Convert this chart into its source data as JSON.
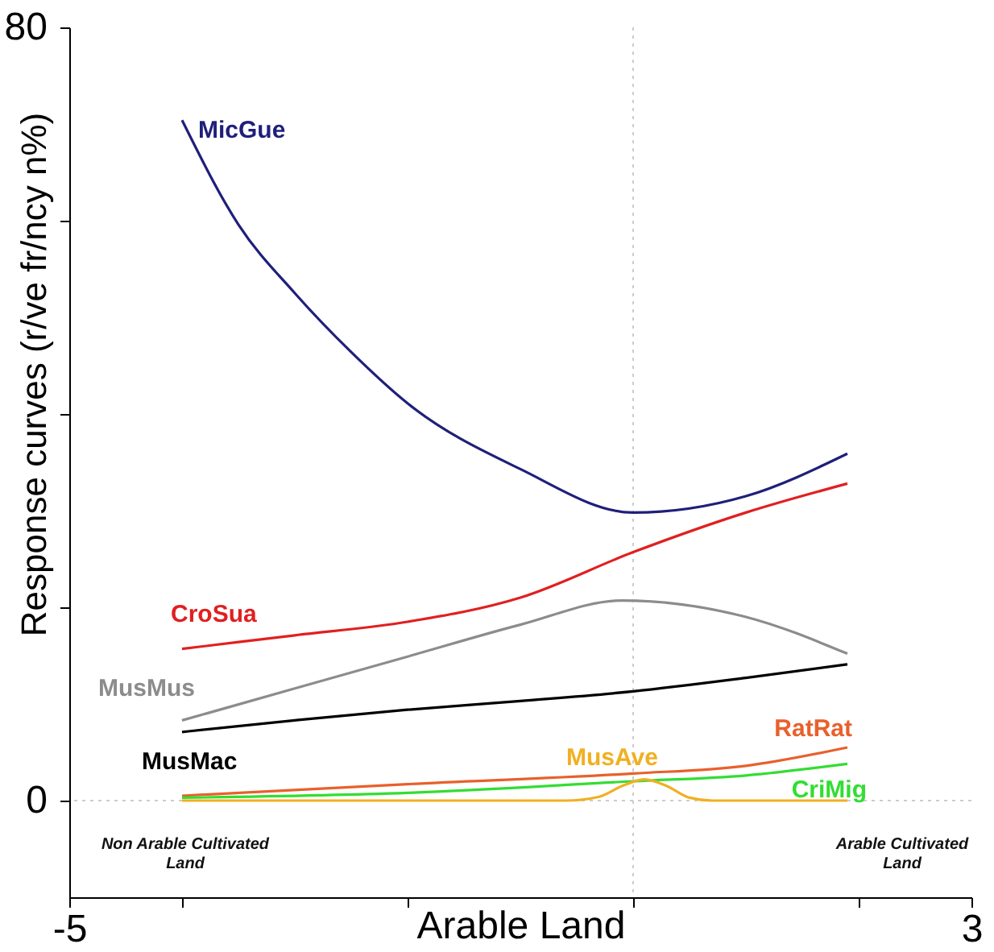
{
  "chart_data": {
    "type": "line",
    "xlabel": "Arable Land",
    "ylabel": "Response curves (r/ve fr/ncy n%)",
    "xlim": [
      -5,
      3
    ],
    "ylim": [
      -10,
      80
    ],
    "xticks": [
      -5,
      {
        "value": -4,
        "label": null
      },
      {
        "value": -2,
        "label": null
      },
      {
        "value": 0,
        "label": null
      },
      {
        "value": 2,
        "label": null
      },
      3
    ],
    "yticks": [
      0,
      {
        "value": 20,
        "label": null
      },
      {
        "value": 40,
        "label": null
      },
      {
        "value": 60,
        "label": null
      },
      80
    ],
    "grid": false,
    "marker": "none",
    "line_style": "solid",
    "ref_lines": [
      {
        "axis": "x",
        "value": 0,
        "color": "#cccccc",
        "line_style": "dotted"
      },
      {
        "axis": "y",
        "value": 0,
        "color": "#cccccc",
        "line_style": "dotted"
      }
    ],
    "annotations": [
      "Non Arable Cultivated\nLand",
      "Arable Cultivated\nLand"
    ],
    "series": [
      {
        "name": "MicGue",
        "color": "#1f1f7a",
        "x": [
          -4,
          -3.5,
          -3,
          -2.5,
          -2,
          -1,
          0,
          1,
          1.9
        ],
        "values": [
          70.4,
          59.6,
          52.5,
          46.4,
          41.1,
          34.3,
          29.8,
          31.5,
          35.9
        ]
      },
      {
        "name": "CroSua",
        "color": "#e02020",
        "x": [
          -4,
          -3,
          -2,
          -1,
          0,
          1,
          1.9
        ],
        "values": [
          15.7,
          17.1,
          18.5,
          21.0,
          25.7,
          29.8,
          32.8
        ]
      },
      {
        "name": "MusMus",
        "color": "#8c8c8c",
        "x": [
          -4,
          -3,
          -2,
          -1,
          -0.1,
          1,
          1.9
        ],
        "values": [
          8.3,
          11.6,
          14.9,
          18.2,
          20.7,
          19.0,
          15.2
        ]
      },
      {
        "name": "MusMac",
        "color": "#000000",
        "x": [
          -4,
          -3,
          -2,
          -1,
          0,
          1,
          1.9
        ],
        "values": [
          7.1,
          8.3,
          9.4,
          10.3,
          11.3,
          12.7,
          14.1
        ]
      },
      {
        "name": "RatRat",
        "color": "#e8602c",
        "x": [
          -4,
          -2,
          0,
          1,
          1.9
        ],
        "values": [
          0.5,
          1.7,
          2.8,
          3.6,
          5.5
        ]
      },
      {
        "name": "CriMig",
        "color": "#33dd33",
        "x": [
          -4,
          -2,
          0,
          1,
          1.9
        ],
        "values": [
          0.3,
          0.8,
          2.0,
          2.6,
          3.8
        ]
      },
      {
        "name": "MusAve",
        "color": "#f0b020",
        "x": [
          -4,
          -0.6,
          -0.3,
          -0.1,
          0.1,
          0.3,
          0.5,
          0.7,
          1.9
        ],
        "values": [
          0,
          0,
          0.4,
          1.5,
          2.2,
          1.5,
          0.3,
          0,
          0
        ]
      }
    ]
  }
}
